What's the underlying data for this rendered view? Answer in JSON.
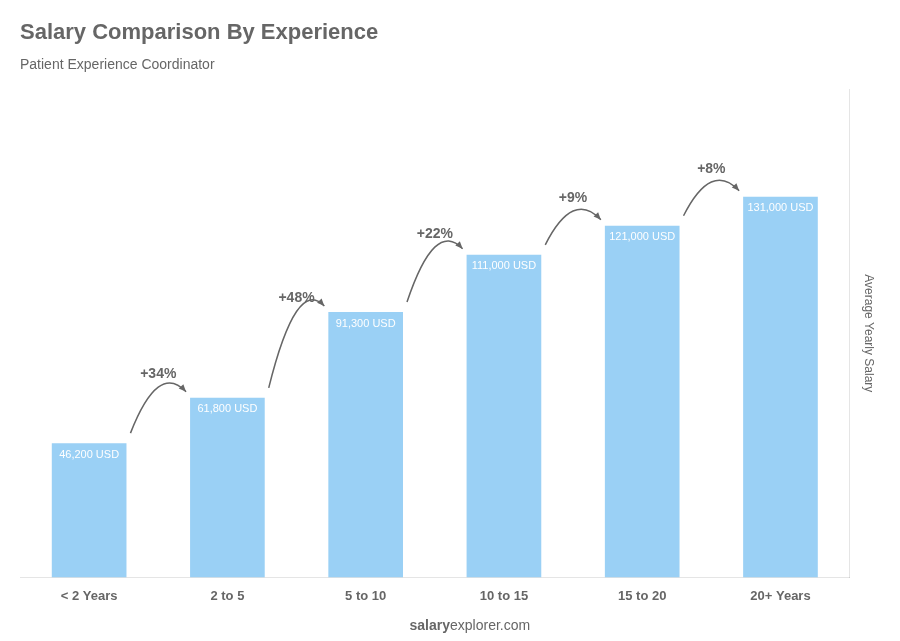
{
  "chart_data": {
    "type": "bar",
    "title": "Salary Comparison By Experience",
    "subtitle": "Patient Experience Coordinator",
    "categories": [
      "< 2 Years",
      "2 to 5",
      "5 to 10",
      "10 to 15",
      "15 to 20",
      "20+ Years"
    ],
    "values": [
      46200,
      61800,
      91300,
      111000,
      121000,
      131000
    ],
    "value_labels": [
      "46,200 USD",
      "61,800 USD",
      "91,300 USD",
      "111,000 USD",
      "121,000 USD",
      "131,000 USD"
    ],
    "data_labels": true,
    "annotations": [
      "+34%",
      "+48%",
      "+22%",
      "+9%",
      "+8%"
    ],
    "ylabel": "Average Yearly Salary",
    "footer": [
      "salary",
      "explorer.com"
    ],
    "ylim": [
      0,
      168000
    ],
    "grid": false,
    "tick_labels": "x"
  }
}
